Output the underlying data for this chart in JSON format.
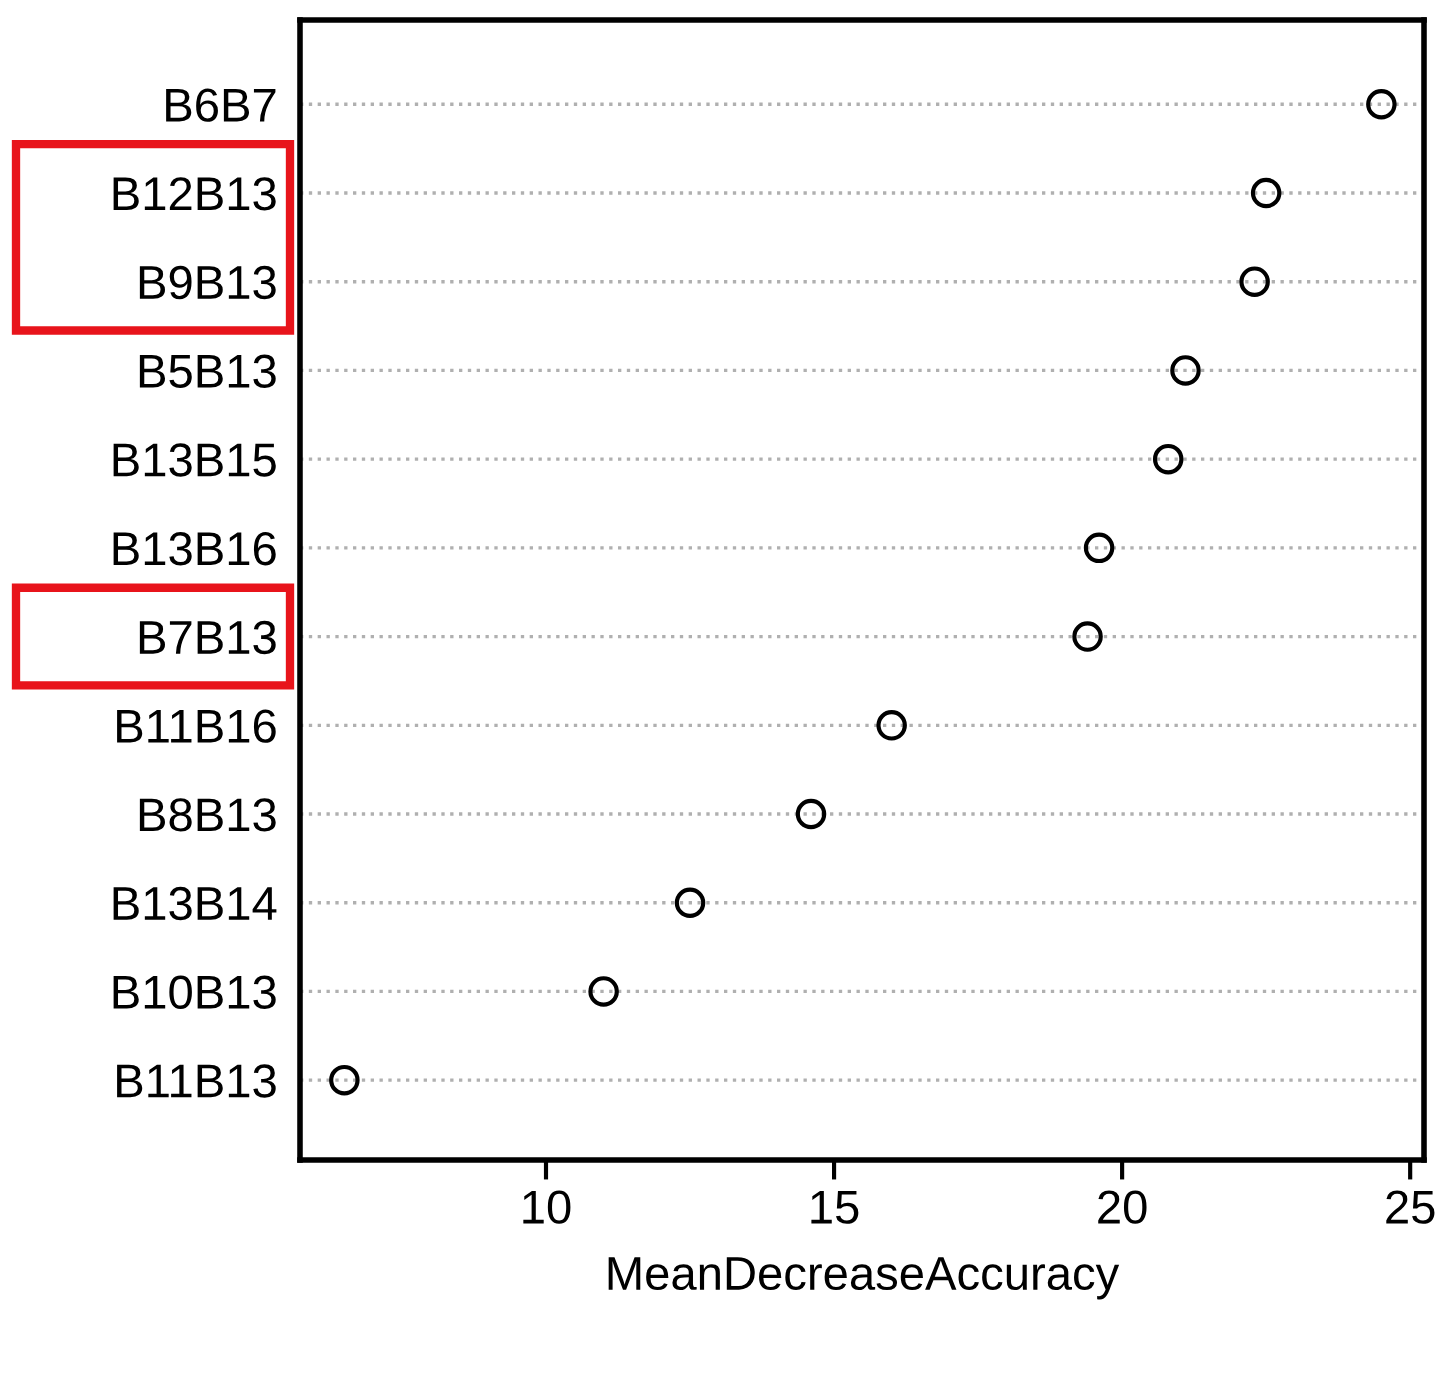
{
  "chart_data": {
    "type": "scatter",
    "orientation": "horizontal",
    "xlabel": "MeanDecreaseAccuracy",
    "categories": [
      "B6B7",
      "B12B13",
      "B9B13",
      "B5B13",
      "B13B15",
      "B13B16",
      "B7B13",
      "B11B16",
      "B8B13",
      "B13B14",
      "B10B13",
      "B11B13"
    ],
    "values": [
      24.5,
      22.5,
      22.3,
      21.1,
      20.8,
      19.6,
      19.4,
      16.0,
      14.6,
      12.5,
      11.0,
      6.5
    ],
    "color": "#000000",
    "marker": "circle",
    "grid": "y",
    "line_style": "dotted",
    "xlim": [
      5.73,
      25.24
    ],
    "xticks": [
      10,
      15,
      20,
      25
    ]
  }
}
